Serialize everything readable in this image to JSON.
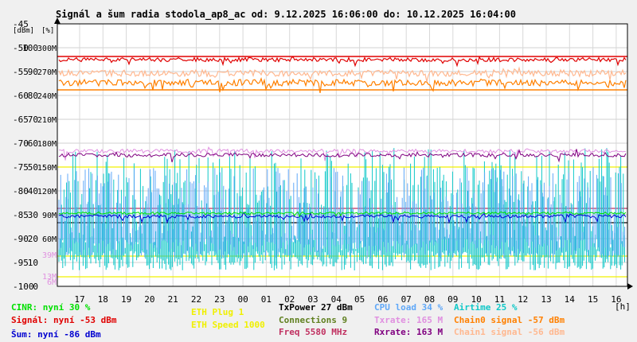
{
  "title": "Signál a šum radia stodola_ap8_ac od: 9.12.2025 16:06:00 do: 10.12.2025 16:04:00",
  "axes": {
    "dbm": {
      "unit": "[dBm]",
      "ticks": [
        "-45",
        "-50",
        "-55",
        "-60",
        "-65",
        "-70",
        "-75",
        "-80",
        "-85",
        "-90",
        "-95",
        "-100"
      ]
    },
    "pct": {
      "unit": "[%]",
      "ticks": [
        "100",
        "90",
        "80",
        "70",
        "60",
        "50",
        "40",
        "30",
        "20",
        "10",
        "0"
      ]
    },
    "rate": {
      "ticks": [
        "300M",
        "270M",
        "240M",
        "210M",
        "180M",
        "150M",
        "120M",
        "90M",
        "60M",
        "39M",
        "13M",
        "6M"
      ]
    },
    "x": {
      "unit": "[h]",
      "ticks": [
        "17",
        "18",
        "19",
        "20",
        "21",
        "22",
        "23",
        "00",
        "01",
        "02",
        "03",
        "04",
        "05",
        "06",
        "07",
        "08",
        "09",
        "10",
        "11",
        "12",
        "13",
        "14",
        "15",
        "16"
      ]
    }
  },
  "legend": [
    {
      "label": "CINR: nyní 30 %",
      "color": "#00e000"
    },
    {
      "label": "Signál: nyní -53 dBm",
      "color": "#e00000"
    },
    {
      "label": "Šum: nyní -86 dBm",
      "color": "#0000d0"
    },
    {
      "label": "ETH Plug 1",
      "color": "#f0f000"
    },
    {
      "label": "ETH Speed 1000",
      "color": "#f0f000"
    },
    {
      "label": "TxPower 27 dBm",
      "color": "#000000"
    },
    {
      "label": "Connections 9",
      "color": "#608020"
    },
    {
      "label": "Freq 5580 MHz",
      "color": "#c03060"
    },
    {
      "label": "CPU load 34 %",
      "color": "#60a8f8"
    },
    {
      "label": "Txrate: 165 M",
      "color": "#e090e0"
    },
    {
      "label": "Rxrate: 163 M",
      "color": "#800080"
    },
    {
      "label": "Airtime 25 %",
      "color": "#10c8c8"
    },
    {
      "label": "Chain0 signal -57 dBm",
      "color": "#ff8000"
    },
    {
      "label": "Chain1 signal -56 dBm",
      "color": "#ffb890"
    }
  ],
  "chart_data": {
    "type": "line",
    "x_range_hours": [
      "9.12.2025 16:06:00",
      "10.12.2025 16:04:00"
    ],
    "ylim_dbm": [
      -100,
      -45
    ],
    "ylim_pct": [
      0,
      100
    ],
    "series": [
      {
        "name": "Signál",
        "unit": "dBm",
        "approx_level": -53,
        "color": "#e00000"
      },
      {
        "name": "Chain1 signal",
        "unit": "dBm",
        "approx_level": -56,
        "color": "#ffb890"
      },
      {
        "name": "Chain0 signal",
        "unit": "dBm",
        "approx_level": -57,
        "color": "#ff8000"
      },
      {
        "name": "Šum",
        "unit": "dBm",
        "approx_level": -86,
        "color": "#0000d0"
      },
      {
        "name": "CINR",
        "unit": "%",
        "approx_level": 30,
        "color": "#00e000"
      },
      {
        "name": "Txrate",
        "unit": "M",
        "approx_level": 165,
        "color": "#e090e0"
      },
      {
        "name": "Rxrate",
        "unit": "M",
        "approx_level": 163,
        "color": "#800080"
      },
      {
        "name": "CPU load",
        "unit": "%",
        "approx_level": 34,
        "color": "#60a8f8"
      },
      {
        "name": "Airtime",
        "unit": "%",
        "approx_level": 25,
        "color": "#10c8c8"
      },
      {
        "name": "TxPower",
        "unit": "dBm",
        "approx_level": 27,
        "color": "#000000"
      }
    ],
    "grid": true
  }
}
